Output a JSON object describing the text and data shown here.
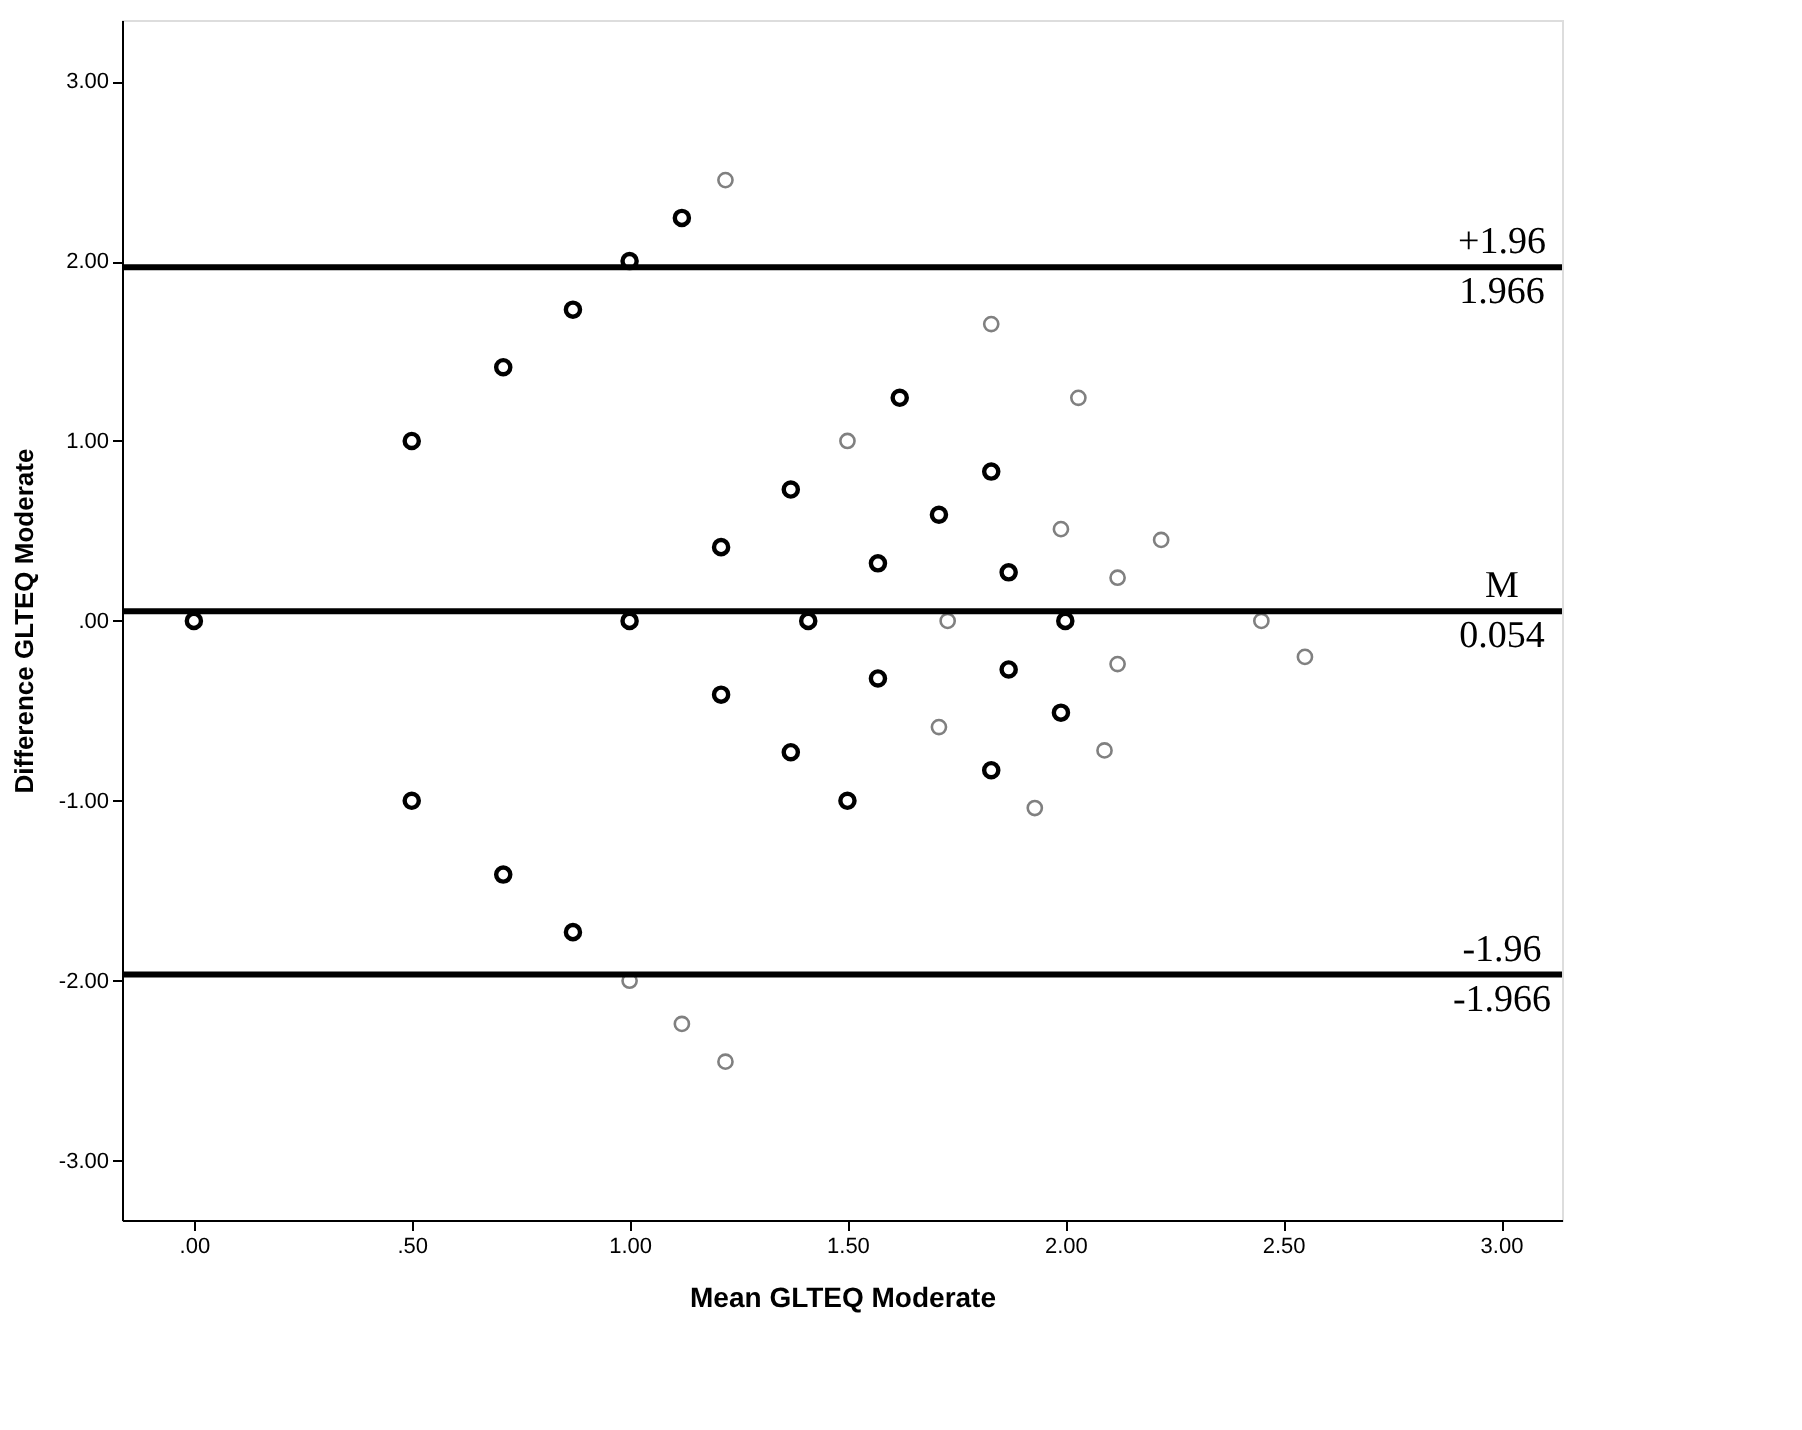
{
  "chart_data": {
    "type": "scatter",
    "xlabel": "Mean GLTEQ Moderate",
    "ylabel": "Difference GLTEQ Moderate",
    "xlim": [
      -0.165,
      3.14
    ],
    "ylim": [
      -3.33,
      3.34
    ],
    "xticks": [
      {
        "value": 0,
        "label": ".00"
      },
      {
        "value": 0.5,
        "label": ".50"
      },
      {
        "value": 1,
        "label": "1.00"
      },
      {
        "value": 1.5,
        "label": "1.50"
      },
      {
        "value": 2,
        "label": "2.00"
      },
      {
        "value": 2.5,
        "label": "2.50"
      },
      {
        "value": 3,
        "label": "3.00"
      }
    ],
    "yticks": [
      {
        "value": -3,
        "label": "-3.00"
      },
      {
        "value": -2,
        "label": "-2.00"
      },
      {
        "value": -1,
        "label": "-1.00"
      },
      {
        "value": 0,
        "label": ".00"
      },
      {
        "value": 1,
        "label": "1.00"
      },
      {
        "value": 2,
        "label": "2.00"
      },
      {
        "value": 3,
        "label": "3.00"
      }
    ],
    "marker": "circle",
    "grid": false,
    "legend": false,
    "series": [
      {
        "color": "#000000",
        "x": [
          0,
          0.5,
          0.5,
          0.71,
          0.71,
          0.87,
          0.87,
          1,
          1,
          1.12,
          1.21,
          1.21,
          1.37,
          1.37,
          1.41,
          1.5,
          1.57,
          1.57,
          1.62,
          1.71,
          1.83,
          1.83,
          1.87,
          1.87,
          1.99,
          2
        ],
        "values": [
          0,
          1,
          -1,
          1.41,
          -1.41,
          1.73,
          -1.73,
          2,
          0,
          2.24,
          0.41,
          -0.41,
          0.73,
          -0.73,
          0,
          -1,
          0.32,
          -0.32,
          1.24,
          0.59,
          0.83,
          -0.83,
          0.27,
          -0.27,
          -0.51,
          0
        ]
      },
      {
        "color": "#808080",
        "x": [
          1,
          1.12,
          1.22,
          1.22,
          1.5,
          1.73,
          1.71,
          1.83,
          1.93,
          1.99,
          2.03,
          2.09,
          2.12,
          2.12,
          2.22,
          2.45,
          2.55
        ],
        "values": [
          -2,
          -2.24,
          2.45,
          -2.45,
          1,
          0,
          -0.59,
          1.65,
          -1.04,
          0.51,
          1.24,
          -0.72,
          0.24,
          -0.24,
          0.45,
          0,
          -0.2
        ]
      }
    ],
    "ref_lines": [
      {
        "axis": "y",
        "value": 1.966,
        "label": "1.966"
      },
      {
        "axis": "y",
        "value": 0.054,
        "label": "0.054"
      },
      {
        "axis": "y",
        "value": -1.966,
        "label": "-1.966"
      }
    ],
    "annotations": [
      {
        "text": "+1.96",
        "y": 1.966
      },
      {
        "text": "M",
        "y": 0.054
      },
      {
        "text": "-1.96",
        "y": -1.966
      }
    ]
  }
}
